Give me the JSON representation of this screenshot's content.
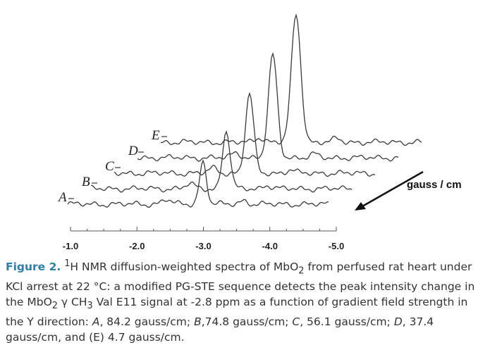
{
  "chart_data": {
    "type": "line",
    "title": "",
    "xlabel": "",
    "ylabel": "",
    "xlim": [
      -1.0,
      -5.0
    ],
    "x_ticks": [
      "-1.0",
      "-2.0",
      "-3.0",
      "-4.0",
      "-5.0"
    ],
    "peak_position_ppm": -2.8,
    "depth_axis_label": "gauss / cm",
    "series": [
      {
        "name": "A",
        "gradient_gauss_per_cm": 84.2,
        "relative_peak_intensity": 0.33
      },
      {
        "name": "B",
        "gradient_gauss_per_cm": 74.8,
        "relative_peak_intensity": 0.45
      },
      {
        "name": "C",
        "gradient_gauss_per_cm": 56.1,
        "relative_peak_intensity": 0.62
      },
      {
        "name": "D",
        "gradient_gauss_per_cm": 37.4,
        "relative_peak_intensity": 0.8
      },
      {
        "name": "E",
        "gradient_gauss_per_cm": 4.7,
        "relative_peak_intensity": 1.0
      }
    ]
  },
  "caption": {
    "fig_label": "Figure 2.",
    "sup_1": "1",
    "t1": "H NMR diffusion-weighted spectra of MbO",
    "sub_2": "2",
    "t2": " from perfused rat heart under KCl arrest at 22 °C:  a modified PG-STE sequence detects the peak intensity change in the MbO",
    "sub_2b": "2",
    "t3": " γ CH",
    "sub_3": "3",
    "t4": " Val E11 signal at -2.8 ppm as a function of gradient field strength in the Y direction: ",
    "a_label": "A",
    "t5": ", 84.2 gauss/cm; ",
    "b_label": "B",
    "t6": ",74.8 gauss/cm; ",
    "c_label": "C",
    "t7": ", 56.1 gauss/cm; ",
    "d_label": "D",
    "t8": ", 37.4 gauss/cm, and (E) 4.7 gauss/cm."
  }
}
